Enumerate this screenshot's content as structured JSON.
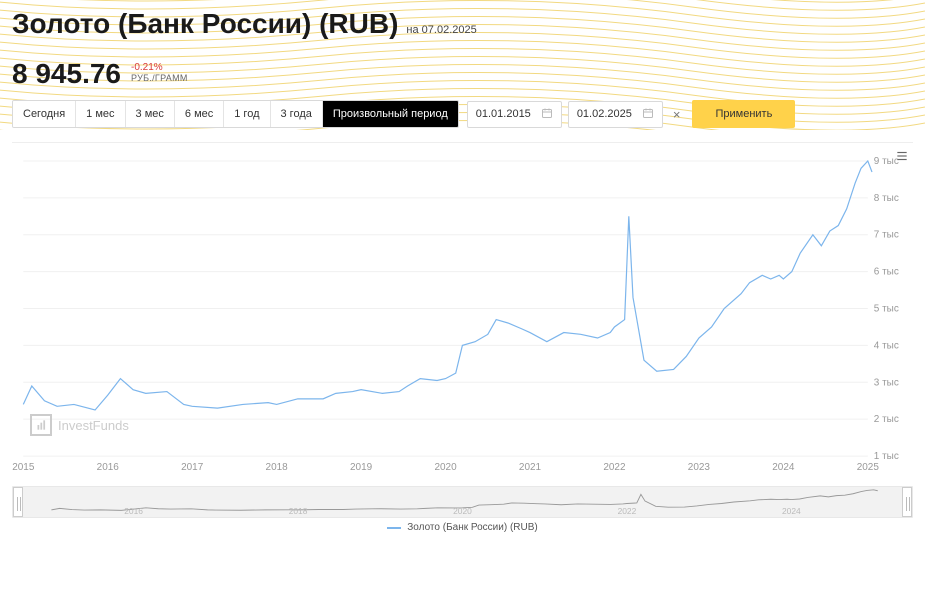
{
  "header": {
    "title": "Золото (Банк России) (RUB)",
    "date_prefix": "на ",
    "date": "07.02.2025",
    "price": "8 945.76",
    "change_pct": "-0.21%",
    "unit": "РУБ./ГРАММ"
  },
  "controls": {
    "periods": [
      {
        "label": "Сегодня",
        "active": false
      },
      {
        "label": "1 мес",
        "active": false
      },
      {
        "label": "3 мес",
        "active": false
      },
      {
        "label": "6 мес",
        "active": false
      },
      {
        "label": "1 год",
        "active": false
      },
      {
        "label": "3 года",
        "active": false
      },
      {
        "label": "Произвольный период",
        "active": true
      }
    ],
    "date_from": "01.01.2015",
    "date_to": "01.02.2025",
    "apply_label": "Применить"
  },
  "chart": {
    "type": "line",
    "series_name": "Золото (Банк России) (RUB)",
    "series_color": "#7cb5ec",
    "background_color": "#ffffff",
    "grid_color": "#f0f0f0",
    "x_axis": {
      "min_year": 2015,
      "max_year": 2025,
      "ticks": [
        2015,
        2016,
        2017,
        2018,
        2019,
        2020,
        2021,
        2022,
        2023,
        2024,
        2025
      ]
    },
    "y_axis": {
      "min": 1000,
      "max": 9000,
      "ticks": [
        1000,
        2000,
        3000,
        4000,
        5000,
        6000,
        7000,
        8000,
        9000
      ],
      "tick_labels": [
        "1 тыс",
        "2 тыс",
        "3 тыс",
        "4 тыс",
        "5 тыс",
        "6 тыс",
        "7 тыс",
        "8 тыс",
        "9 тыс"
      ]
    },
    "data": [
      [
        2015.0,
        2400
      ],
      [
        2015.1,
        2900
      ],
      [
        2015.25,
        2500
      ],
      [
        2015.4,
        2350
      ],
      [
        2015.6,
        2400
      ],
      [
        2015.85,
        2250
      ],
      [
        2016.0,
        2650
      ],
      [
        2016.15,
        3100
      ],
      [
        2016.3,
        2800
      ],
      [
        2016.45,
        2700
      ],
      [
        2016.7,
        2750
      ],
      [
        2016.9,
        2400
      ],
      [
        2017.0,
        2350
      ],
      [
        2017.3,
        2300
      ],
      [
        2017.6,
        2400
      ],
      [
        2017.9,
        2450
      ],
      [
        2018.0,
        2400
      ],
      [
        2018.25,
        2550
      ],
      [
        2018.55,
        2550
      ],
      [
        2018.7,
        2700
      ],
      [
        2018.9,
        2750
      ],
      [
        2019.0,
        2800
      ],
      [
        2019.25,
        2700
      ],
      [
        2019.45,
        2750
      ],
      [
        2019.55,
        2900
      ],
      [
        2019.7,
        3100
      ],
      [
        2019.9,
        3050
      ],
      [
        2020.0,
        3100
      ],
      [
        2020.12,
        3250
      ],
      [
        2020.2,
        4000
      ],
      [
        2020.35,
        4100
      ],
      [
        2020.5,
        4300
      ],
      [
        2020.6,
        4700
      ],
      [
        2020.75,
        4600
      ],
      [
        2020.9,
        4450
      ],
      [
        2021.0,
        4350
      ],
      [
        2021.2,
        4100
      ],
      [
        2021.4,
        4350
      ],
      [
        2021.6,
        4300
      ],
      [
        2021.8,
        4200
      ],
      [
        2021.95,
        4350
      ],
      [
        2022.0,
        4500
      ],
      [
        2022.12,
        4700
      ],
      [
        2022.17,
        7500
      ],
      [
        2022.22,
        5300
      ],
      [
        2022.35,
        3600
      ],
      [
        2022.5,
        3300
      ],
      [
        2022.7,
        3350
      ],
      [
        2022.85,
        3700
      ],
      [
        2023.0,
        4200
      ],
      [
        2023.15,
        4500
      ],
      [
        2023.3,
        5000
      ],
      [
        2023.5,
        5400
      ],
      [
        2023.6,
        5700
      ],
      [
        2023.75,
        5900
      ],
      [
        2023.85,
        5800
      ],
      [
        2023.95,
        5900
      ],
      [
        2024.0,
        5800
      ],
      [
        2024.1,
        6000
      ],
      [
        2024.2,
        6500
      ],
      [
        2024.35,
        7000
      ],
      [
        2024.45,
        6700
      ],
      [
        2024.55,
        7100
      ],
      [
        2024.65,
        7250
      ],
      [
        2024.75,
        7700
      ],
      [
        2024.85,
        8400
      ],
      [
        2024.92,
        8800
      ],
      [
        2025.0,
        9000
      ],
      [
        2025.05,
        8700
      ]
    ],
    "watermark": "InvestFunds"
  },
  "navigator": {
    "ticks": [
      2016,
      2018,
      2020,
      2022,
      2024
    ]
  },
  "legend": {
    "label": "Золото (Банк России) (RUB)"
  },
  "waves": {
    "stroke": "#f2d981",
    "count": 22
  }
}
